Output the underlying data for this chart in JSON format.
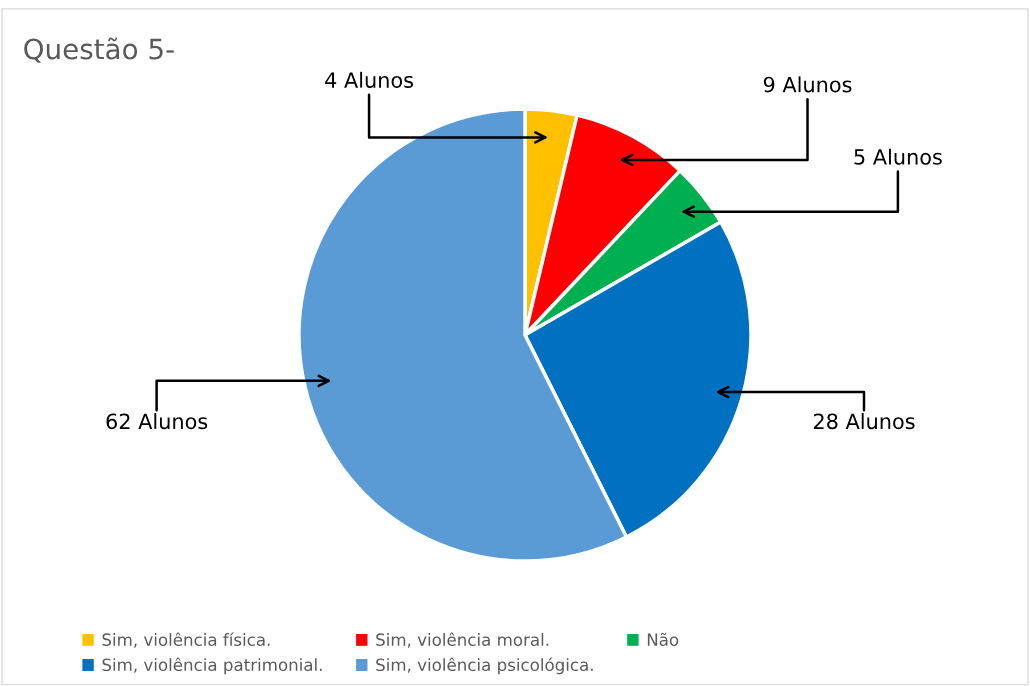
{
  "chart_data": {
    "type": "pie",
    "title": "Questão 5-",
    "categories": [
      "Sim, violência física.",
      "Sim, violência moral.",
      "Não",
      "Sim, violência patrimonial.",
      "Sim, violência psicológica."
    ],
    "values": [
      4,
      9,
      5,
      28,
      62
    ],
    "colors": [
      "#ffc000",
      "#ff0000",
      "#00b050",
      "#0070c0",
      "#5b9bd5"
    ],
    "value_labels": [
      "4 Alunos",
      "9 Alunos",
      "5 Alunos",
      "28 Alunos",
      "62 Alunos"
    ],
    "legend": "bottom"
  }
}
